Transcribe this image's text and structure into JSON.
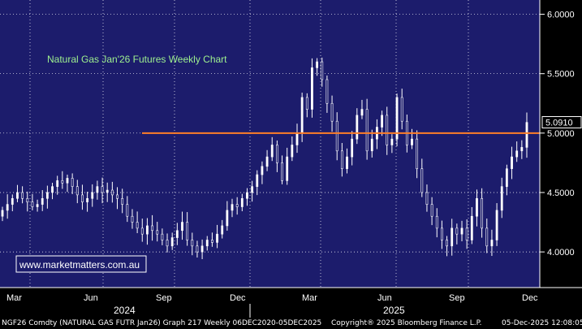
{
  "chart_data": {
    "type": "candlestick",
    "title": "Natural Gas Jan'26 Futures Weekly Chart",
    "watermark": "www.marketmatters.com.au",
    "frequency": "weekly",
    "period": "Feb 2024 - Dec 2025",
    "ylim": [
      3.7,
      6.12
    ],
    "y_ticks": [
      "4.0000",
      "4.5000",
      "5.0000",
      "5.5000",
      "6.0000"
    ],
    "y_tick_values": [
      4.0,
      4.5,
      5.0,
      5.5,
      6.0
    ],
    "x_month_labels": [
      "Mar",
      "Jun",
      "Sep",
      "Dec",
      "Mar",
      "Jun",
      "Sep",
      "Dec"
    ],
    "x_year_labels": [
      "2024",
      "2025"
    ],
    "grid": true,
    "horizontal_line": {
      "value": 5.0,
      "color": "#ff7f27"
    },
    "last_price": {
      "label": "5.0910",
      "value": 5.091
    },
    "weekly_close": [
      4.35,
      4.4,
      4.45,
      4.5,
      4.45,
      4.42,
      4.38,
      4.4,
      4.45,
      4.5,
      4.55,
      4.6,
      4.58,
      4.62,
      4.55,
      4.48,
      4.42,
      4.45,
      4.5,
      4.55,
      4.5,
      4.52,
      4.48,
      4.45,
      4.4,
      4.3,
      4.25,
      4.2,
      4.15,
      4.22,
      4.18,
      4.15,
      4.1,
      4.05,
      4.12,
      4.18,
      4.25,
      4.1,
      4.05,
      4.0,
      4.05,
      4.1,
      4.08,
      4.15,
      4.22,
      4.35,
      4.4,
      4.38,
      4.45,
      4.5,
      4.55,
      4.65,
      4.72,
      4.8,
      4.9,
      4.75,
      4.6,
      4.8,
      4.9,
      5.0,
      5.3,
      5.2,
      5.55,
      5.6,
      5.45,
      5.25,
      5.1,
      4.85,
      4.7,
      4.8,
      4.95,
      5.15,
      5.2,
      4.85,
      4.95,
      5.05,
      5.15,
      4.9,
      4.95,
      5.3,
      5.1,
      4.9,
      4.95,
      4.7,
      4.5,
      4.4,
      4.3,
      4.2,
      4.1,
      4.05,
      4.2,
      4.15,
      4.2,
      4.1,
      4.3,
      4.45,
      4.2,
      4.05,
      4.1,
      4.35,
      4.55,
      4.7,
      4.8,
      4.85,
      4.88,
      5.09
    ]
  },
  "footer": {
    "left": "NGF26 Comdty (NATURAL GAS FUTR  Jan26) Graph 217 Weekly 06DEC2020-05DEC2025",
    "center": "Copyright® 2025 Bloomberg Finance L.P.",
    "right": "05-Dec-2025 12:08:05"
  },
  "colors": {
    "background": "#000000",
    "plot_area": "#1c1c6c",
    "grid": "#ffffff",
    "candle": "#ffffff",
    "line": "#ff7f27",
    "title": "#9ef08f",
    "watermark": "#ffffff",
    "last_price_bg": "#000000"
  }
}
